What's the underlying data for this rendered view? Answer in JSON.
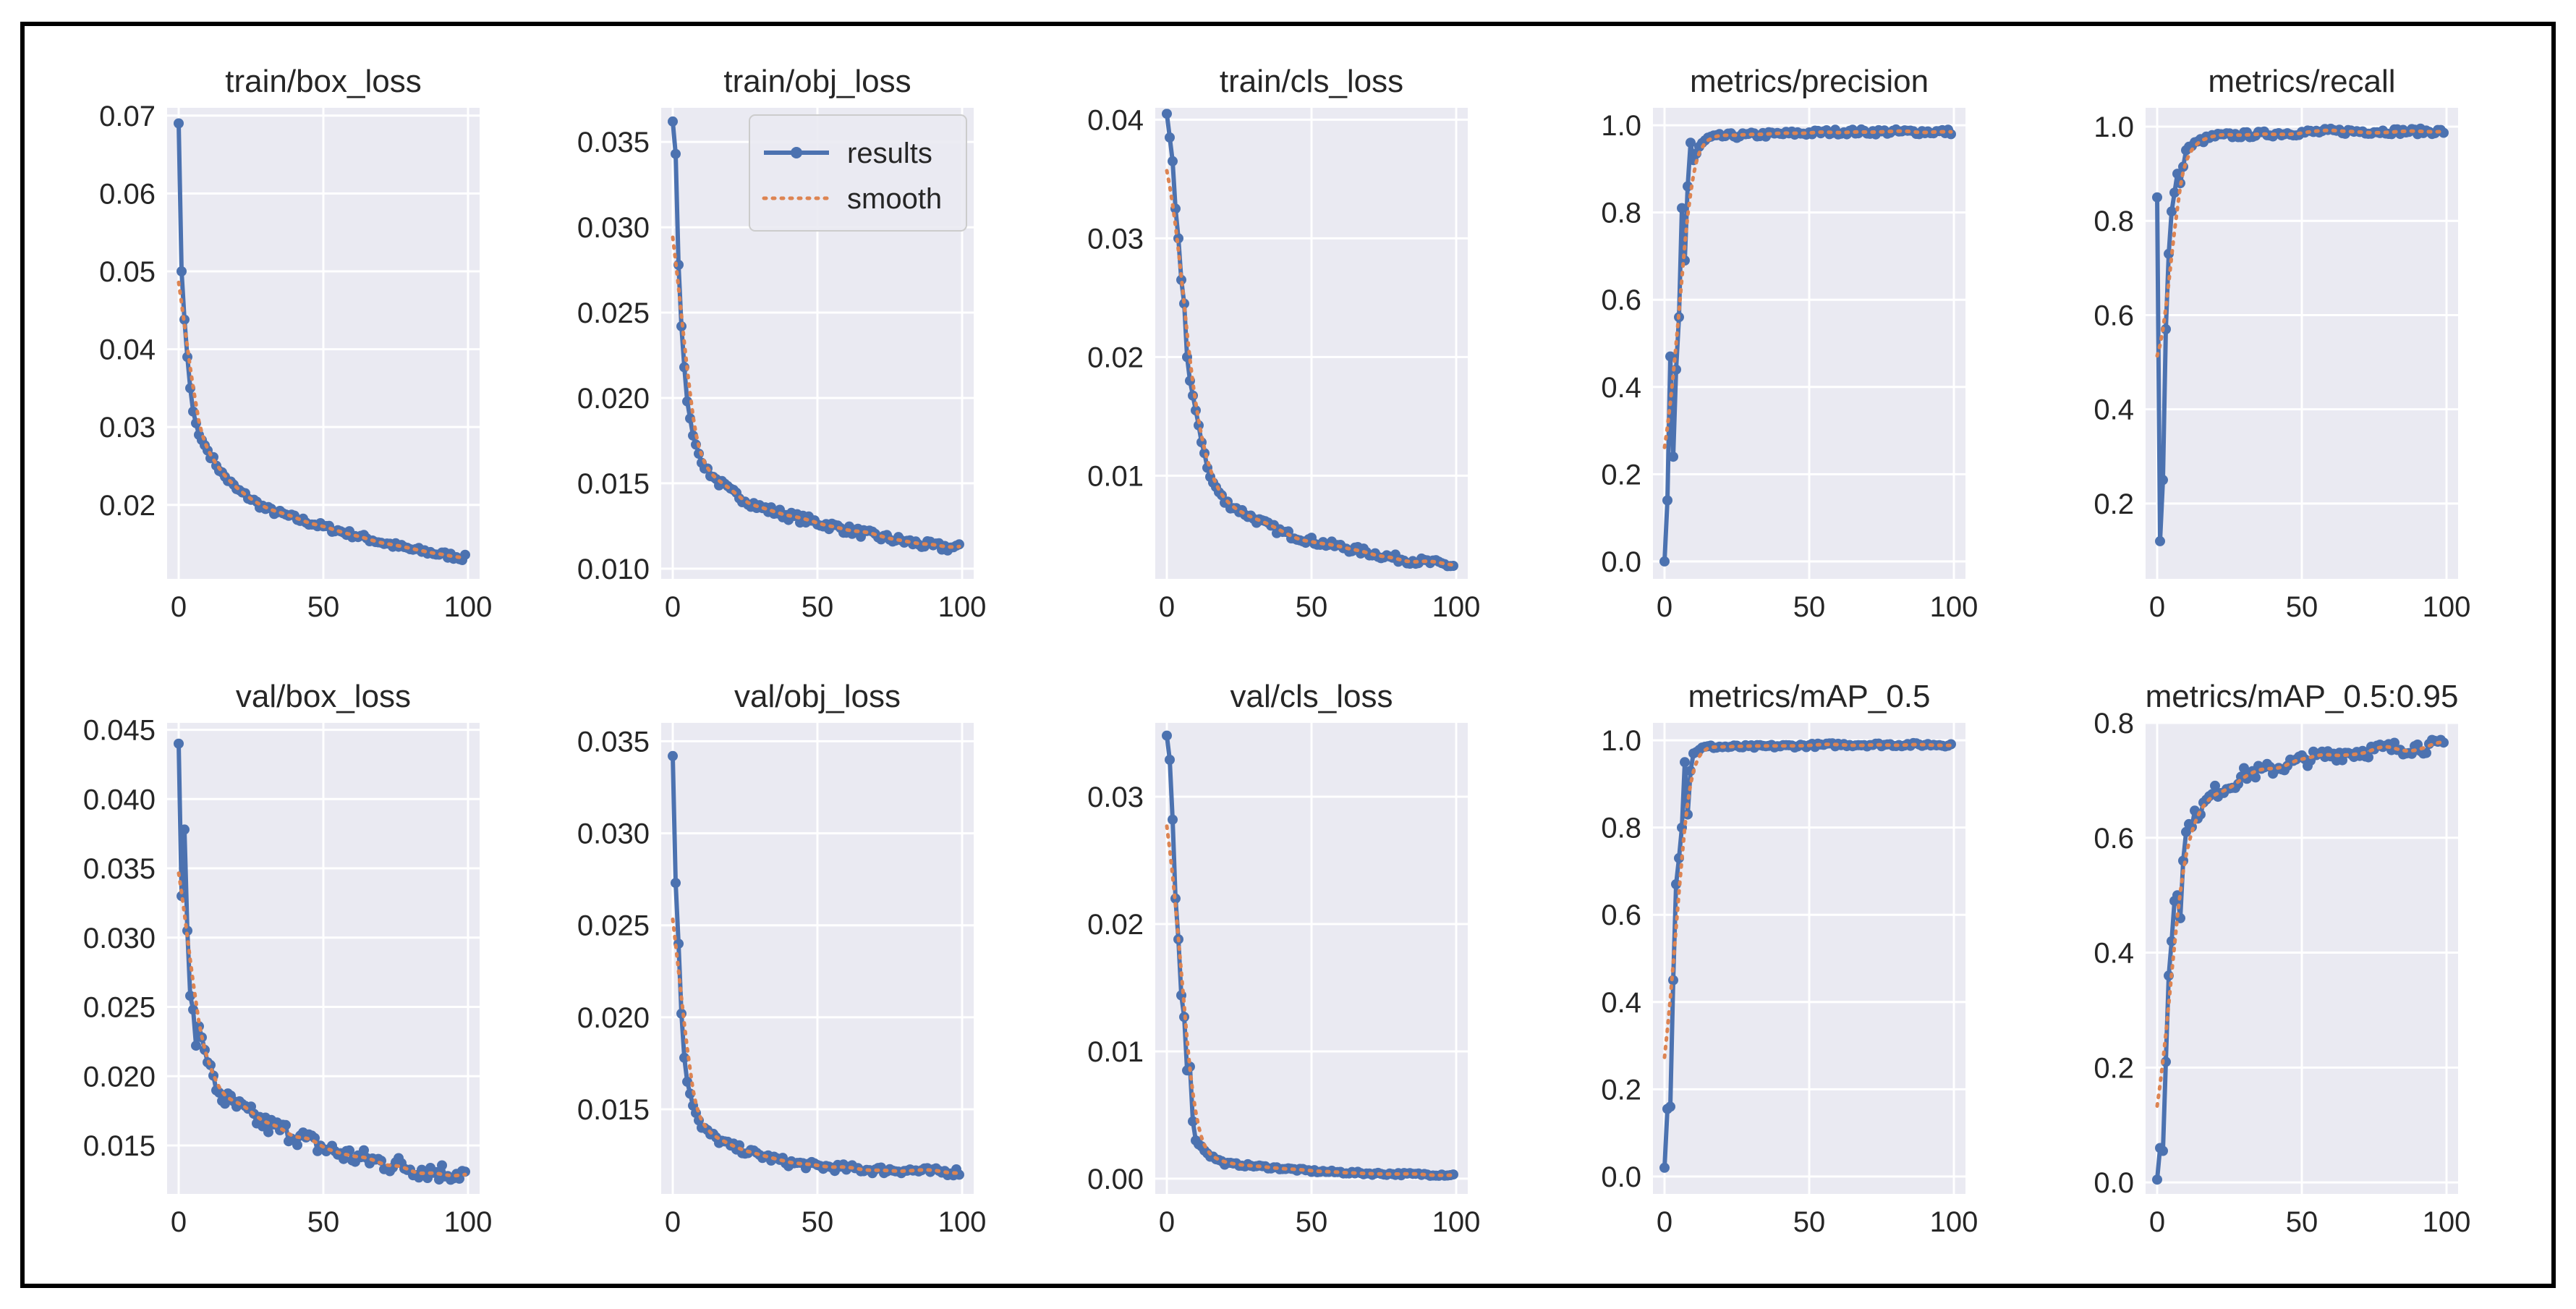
{
  "figure": {
    "legend_results": "results",
    "legend_smooth": "smooth"
  },
  "colors": {
    "panel_bg": "#EAEAF2",
    "grid": "#FFFFFF",
    "results": "#4C72B0",
    "smooth": "#DD8452",
    "text": "#262626"
  },
  "chart_data": [
    {
      "type": "line",
      "title": "train/box_loss",
      "xlim": [
        -4,
        104
      ],
      "ylim": [
        0.0105,
        0.071
      ],
      "xticks": [
        0,
        50,
        100
      ],
      "xtick_labels": [
        "0",
        "50",
        "100"
      ],
      "yticks": [
        0.02,
        0.03,
        0.04,
        0.05,
        0.06,
        0.07
      ],
      "ytick_labels": [
        "0.02",
        "0.03",
        "0.04",
        "0.05",
        "0.06",
        "0.07"
      ],
      "curve": {
        "kind": "decay",
        "start": 0.069,
        "end": 0.0132,
        "anchors": [
          [
            0,
            0.069
          ],
          [
            1,
            0.05
          ],
          [
            2,
            0.0438
          ],
          [
            3,
            0.039
          ],
          [
            4,
            0.035
          ],
          [
            5,
            0.032
          ],
          [
            7,
            0.029
          ],
          [
            10,
            0.027
          ],
          [
            15,
            0.024
          ],
          [
            20,
            0.022
          ],
          [
            30,
            0.0195
          ],
          [
            40,
            0.0183
          ],
          [
            50,
            0.0172
          ],
          [
            60,
            0.0162
          ],
          [
            70,
            0.0152
          ],
          [
            80,
            0.0143
          ],
          [
            90,
            0.0137
          ],
          [
            99,
            0.0132
          ]
        ],
        "noise": 0.0004
      }
    },
    {
      "type": "line",
      "title": "train/obj_loss",
      "xlim": [
        -4,
        104
      ],
      "ylim": [
        0.0094,
        0.037
      ],
      "xticks": [
        0,
        50,
        100
      ],
      "xtick_labels": [
        "0",
        "50",
        "100"
      ],
      "yticks": [
        0.01,
        0.015,
        0.02,
        0.025,
        0.03,
        0.035
      ],
      "ytick_labels": [
        "0.010",
        "0.015",
        "0.020",
        "0.025",
        "0.030",
        "0.035"
      ],
      "legend": true,
      "curve": {
        "kind": "decay",
        "start": 0.0362,
        "end": 0.0112,
        "anchors": [
          [
            0,
            0.0362
          ],
          [
            1,
            0.0343
          ],
          [
            2,
            0.0278
          ],
          [
            3,
            0.0242
          ],
          [
            4,
            0.0218
          ],
          [
            5,
            0.0198
          ],
          [
            7,
            0.0178
          ],
          [
            10,
            0.0162
          ],
          [
            15,
            0.0152
          ],
          [
            20,
            0.0145
          ],
          [
            30,
            0.0136
          ],
          [
            40,
            0.0131
          ],
          [
            50,
            0.0127
          ],
          [
            60,
            0.0123
          ],
          [
            70,
            0.0119
          ],
          [
            80,
            0.0116
          ],
          [
            90,
            0.0113
          ],
          [
            99,
            0.0112
          ]
        ],
        "noise": 0.00025
      }
    },
    {
      "type": "line",
      "title": "train/cls_loss",
      "xlim": [
        -4,
        104
      ],
      "ylim": [
        0.0013,
        0.041
      ],
      "xticks": [
        0,
        50,
        100
      ],
      "xtick_labels": [
        "0",
        "50",
        "100"
      ],
      "yticks": [
        0.01,
        0.02,
        0.03,
        0.04
      ],
      "ytick_labels": [
        "0.01",
        "0.02",
        "0.03",
        "0.04"
      ],
      "curve": {
        "kind": "decay",
        "start": 0.0405,
        "end": 0.0024,
        "anchors": [
          [
            0,
            0.0405
          ],
          [
            1,
            0.0385
          ],
          [
            2,
            0.0365
          ],
          [
            3,
            0.0325
          ],
          [
            4,
            0.03
          ],
          [
            5,
            0.0265
          ],
          [
            6,
            0.0245
          ],
          [
            7,
            0.02
          ],
          [
            8,
            0.018
          ],
          [
            10,
            0.0155
          ],
          [
            12,
            0.013
          ],
          [
            15,
            0.0098
          ],
          [
            20,
            0.0078
          ],
          [
            30,
            0.0064
          ],
          [
            40,
            0.0052
          ],
          [
            50,
            0.0045
          ],
          [
            60,
            0.004
          ],
          [
            70,
            0.0035
          ],
          [
            80,
            0.003
          ],
          [
            90,
            0.0027
          ],
          [
            99,
            0.0024
          ]
        ],
        "noise": 0.0003
      }
    },
    {
      "type": "line",
      "title": "metrics/precision",
      "xlim": [
        -4,
        104
      ],
      "ylim": [
        -0.04,
        1.04
      ],
      "xticks": [
        0,
        50,
        100
      ],
      "xtick_labels": [
        "0",
        "50",
        "100"
      ],
      "yticks": [
        0.0,
        0.2,
        0.4,
        0.6,
        0.8,
        1.0
      ],
      "ytick_labels": [
        "0.0",
        "0.2",
        "0.4",
        "0.6",
        "0.8",
        "1.0"
      ],
      "curve": {
        "kind": "rise",
        "start": 0.0,
        "end": 0.985,
        "anchors": [
          [
            0,
            0.0
          ],
          [
            1,
            0.14
          ],
          [
            2,
            0.47
          ],
          [
            3,
            0.24
          ],
          [
            4,
            0.44
          ],
          [
            5,
            0.56
          ],
          [
            6,
            0.81
          ],
          [
            7,
            0.69
          ],
          [
            8,
            0.86
          ],
          [
            9,
            0.96
          ],
          [
            10,
            0.92
          ],
          [
            12,
            0.95
          ],
          [
            15,
            0.97
          ],
          [
            20,
            0.975
          ],
          [
            40,
            0.98
          ],
          [
            60,
            0.985
          ],
          [
            99,
            0.985
          ]
        ],
        "noise": 0.006
      }
    },
    {
      "type": "line",
      "title": "metrics/recall",
      "xlim": [
        -4,
        104
      ],
      "ylim": [
        0.04,
        1.04
      ],
      "xticks": [
        0,
        50,
        100
      ],
      "xtick_labels": [
        "0",
        "50",
        "100"
      ],
      "yticks": [
        0.2,
        0.4,
        0.6,
        0.8,
        1.0
      ],
      "ytick_labels": [
        "0.2",
        "0.4",
        "0.6",
        "0.8",
        "1.0"
      ],
      "curve": {
        "kind": "rise",
        "start": 0.85,
        "end": 0.99,
        "anchors": [
          [
            0,
            0.85
          ],
          [
            1,
            0.12
          ],
          [
            2,
            0.25
          ],
          [
            3,
            0.57
          ],
          [
            4,
            0.73
          ],
          [
            5,
            0.82
          ],
          [
            6,
            0.86
          ],
          [
            7,
            0.9
          ],
          [
            8,
            0.88
          ],
          [
            10,
            0.95
          ],
          [
            12,
            0.96
          ],
          [
            15,
            0.97
          ],
          [
            20,
            0.98
          ],
          [
            40,
            0.985
          ],
          [
            60,
            0.99
          ],
          [
            99,
            0.99
          ]
        ],
        "noise": 0.006
      }
    },
    {
      "type": "line",
      "title": "val/box_loss",
      "xlim": [
        -4,
        104
      ],
      "ylim": [
        0.0115,
        0.0455
      ],
      "xticks": [
        0,
        50,
        100
      ],
      "xtick_labels": [
        "0",
        "50",
        "100"
      ],
      "yticks": [
        0.015,
        0.02,
        0.025,
        0.03,
        0.035,
        0.04,
        0.045
      ],
      "ytick_labels": [
        "0.015",
        "0.020",
        "0.025",
        "0.030",
        "0.035",
        "0.040",
        "0.045"
      ],
      "curve": {
        "kind": "decay",
        "start": 0.044,
        "end": 0.013,
        "anchors": [
          [
            0,
            0.044
          ],
          [
            1,
            0.033
          ],
          [
            2,
            0.0378
          ],
          [
            3,
            0.0305
          ],
          [
            4,
            0.0258
          ],
          [
            5,
            0.0248
          ],
          [
            6,
            0.0222
          ],
          [
            7,
            0.0236
          ],
          [
            8,
            0.0228
          ],
          [
            10,
            0.021
          ],
          [
            12,
            0.0196
          ],
          [
            15,
            0.0185
          ],
          [
            20,
            0.0178
          ],
          [
            30,
            0.0165
          ],
          [
            40,
            0.0158
          ],
          [
            50,
            0.0148
          ],
          [
            60,
            0.0142
          ],
          [
            70,
            0.0138
          ],
          [
            80,
            0.0134
          ],
          [
            90,
            0.0131
          ],
          [
            99,
            0.013
          ]
        ],
        "noise": 0.0007
      }
    },
    {
      "type": "line",
      "title": "val/obj_loss",
      "xlim": [
        -4,
        104
      ],
      "ylim": [
        0.0104,
        0.036
      ],
      "xticks": [
        0,
        50,
        100
      ],
      "xtick_labels": [
        "0",
        "50",
        "100"
      ],
      "yticks": [
        0.015,
        0.02,
        0.025,
        0.03,
        0.035
      ],
      "ytick_labels": [
        "0.015",
        "0.020",
        "0.025",
        "0.030",
        "0.035"
      ],
      "curve": {
        "kind": "decay",
        "start": 0.0342,
        "end": 0.0116,
        "anchors": [
          [
            0,
            0.0342
          ],
          [
            1,
            0.0273
          ],
          [
            2,
            0.024
          ],
          [
            3,
            0.0202
          ],
          [
            4,
            0.0178
          ],
          [
            5,
            0.0165
          ],
          [
            7,
            0.0152
          ],
          [
            10,
            0.014
          ],
          [
            15,
            0.0134
          ],
          [
            20,
            0.013
          ],
          [
            30,
            0.0125
          ],
          [
            40,
            0.0121
          ],
          [
            50,
            0.0119
          ],
          [
            60,
            0.0118
          ],
          [
            70,
            0.0117
          ],
          [
            80,
            0.0117
          ],
          [
            90,
            0.0116
          ],
          [
            99,
            0.0116
          ]
        ],
        "noise": 0.0002
      }
    },
    {
      "type": "line",
      "title": "val/cls_loss",
      "xlim": [
        -4,
        104
      ],
      "ylim": [
        -0.0012,
        0.0358
      ],
      "xticks": [
        0,
        50,
        100
      ],
      "xtick_labels": [
        "0",
        "50",
        "100"
      ],
      "yticks": [
        0.0,
        0.01,
        0.02,
        0.03
      ],
      "ytick_labels": [
        "0.00",
        "0.01",
        "0.02",
        "0.03"
      ],
      "curve": {
        "kind": "decay",
        "start": 0.0348,
        "end": 0.0003,
        "anchors": [
          [
            0,
            0.0348
          ],
          [
            1,
            0.0329
          ],
          [
            2,
            0.0282
          ],
          [
            3,
            0.022
          ],
          [
            4,
            0.0188
          ],
          [
            5,
            0.0144
          ],
          [
            6,
            0.0127
          ],
          [
            7,
            0.0085
          ],
          [
            8,
            0.0088
          ],
          [
            9,
            0.0045
          ],
          [
            10,
            0.003
          ],
          [
            12,
            0.0025
          ],
          [
            15,
            0.0018
          ],
          [
            20,
            0.0012
          ],
          [
            30,
            0.001
          ],
          [
            40,
            0.0008
          ],
          [
            50,
            0.0006
          ],
          [
            70,
            0.0004
          ],
          [
            99,
            0.0003
          ]
        ],
        "noise": 0.0001
      }
    },
    {
      "type": "line",
      "title": "metrics/mAP_0.5",
      "xlim": [
        -4,
        104
      ],
      "ylim": [
        -0.04,
        1.04
      ],
      "xticks": [
        0,
        50,
        100
      ],
      "xtick_labels": [
        "0",
        "50",
        "100"
      ],
      "yticks": [
        0.0,
        0.2,
        0.4,
        0.6,
        0.8,
        1.0
      ],
      "ytick_labels": [
        "0.0",
        "0.2",
        "0.4",
        "0.6",
        "0.8",
        "1.0"
      ],
      "curve": {
        "kind": "rise",
        "start": 0.02,
        "end": 0.99,
        "anchors": [
          [
            0,
            0.02
          ],
          [
            1,
            0.155
          ],
          [
            2,
            0.16
          ],
          [
            3,
            0.45
          ],
          [
            4,
            0.67
          ],
          [
            5,
            0.73
          ],
          [
            6,
            0.8
          ],
          [
            7,
            0.95
          ],
          [
            8,
            0.83
          ],
          [
            9,
            0.93
          ],
          [
            10,
            0.97
          ],
          [
            12,
            0.98
          ],
          [
            15,
            0.985
          ],
          [
            30,
            0.985
          ],
          [
            60,
            0.99
          ],
          [
            99,
            0.99
          ]
        ],
        "noise": 0.004
      }
    },
    {
      "type": "line",
      "title": "metrics/mAP_0.5:0.95",
      "xlim": [
        -4,
        104
      ],
      "ylim": [
        -0.02,
        0.8
      ],
      "xticks": [
        0,
        50,
        100
      ],
      "xtick_labels": [
        "0",
        "50",
        "100"
      ],
      "yticks": [
        0.0,
        0.2,
        0.4,
        0.6,
        0.8
      ],
      "ytick_labels": [
        "0.0",
        "0.2",
        "0.4",
        "0.6",
        "0.8"
      ],
      "curve": {
        "kind": "rise",
        "start": 0.005,
        "end": 0.76,
        "anchors": [
          [
            0,
            0.005
          ],
          [
            1,
            0.06
          ],
          [
            2,
            0.055
          ],
          [
            3,
            0.21
          ],
          [
            4,
            0.36
          ],
          [
            5,
            0.42
          ],
          [
            6,
            0.49
          ],
          [
            7,
            0.5
          ],
          [
            8,
            0.46
          ],
          [
            9,
            0.56
          ],
          [
            10,
            0.61
          ],
          [
            12,
            0.63
          ],
          [
            15,
            0.65
          ],
          [
            20,
            0.68
          ],
          [
            25,
            0.69
          ],
          [
            30,
            0.71
          ],
          [
            40,
            0.72
          ],
          [
            50,
            0.735
          ],
          [
            60,
            0.745
          ],
          [
            70,
            0.75
          ],
          [
            80,
            0.755
          ],
          [
            90,
            0.758
          ],
          [
            99,
            0.76
          ]
        ],
        "noise": 0.012
      }
    }
  ]
}
